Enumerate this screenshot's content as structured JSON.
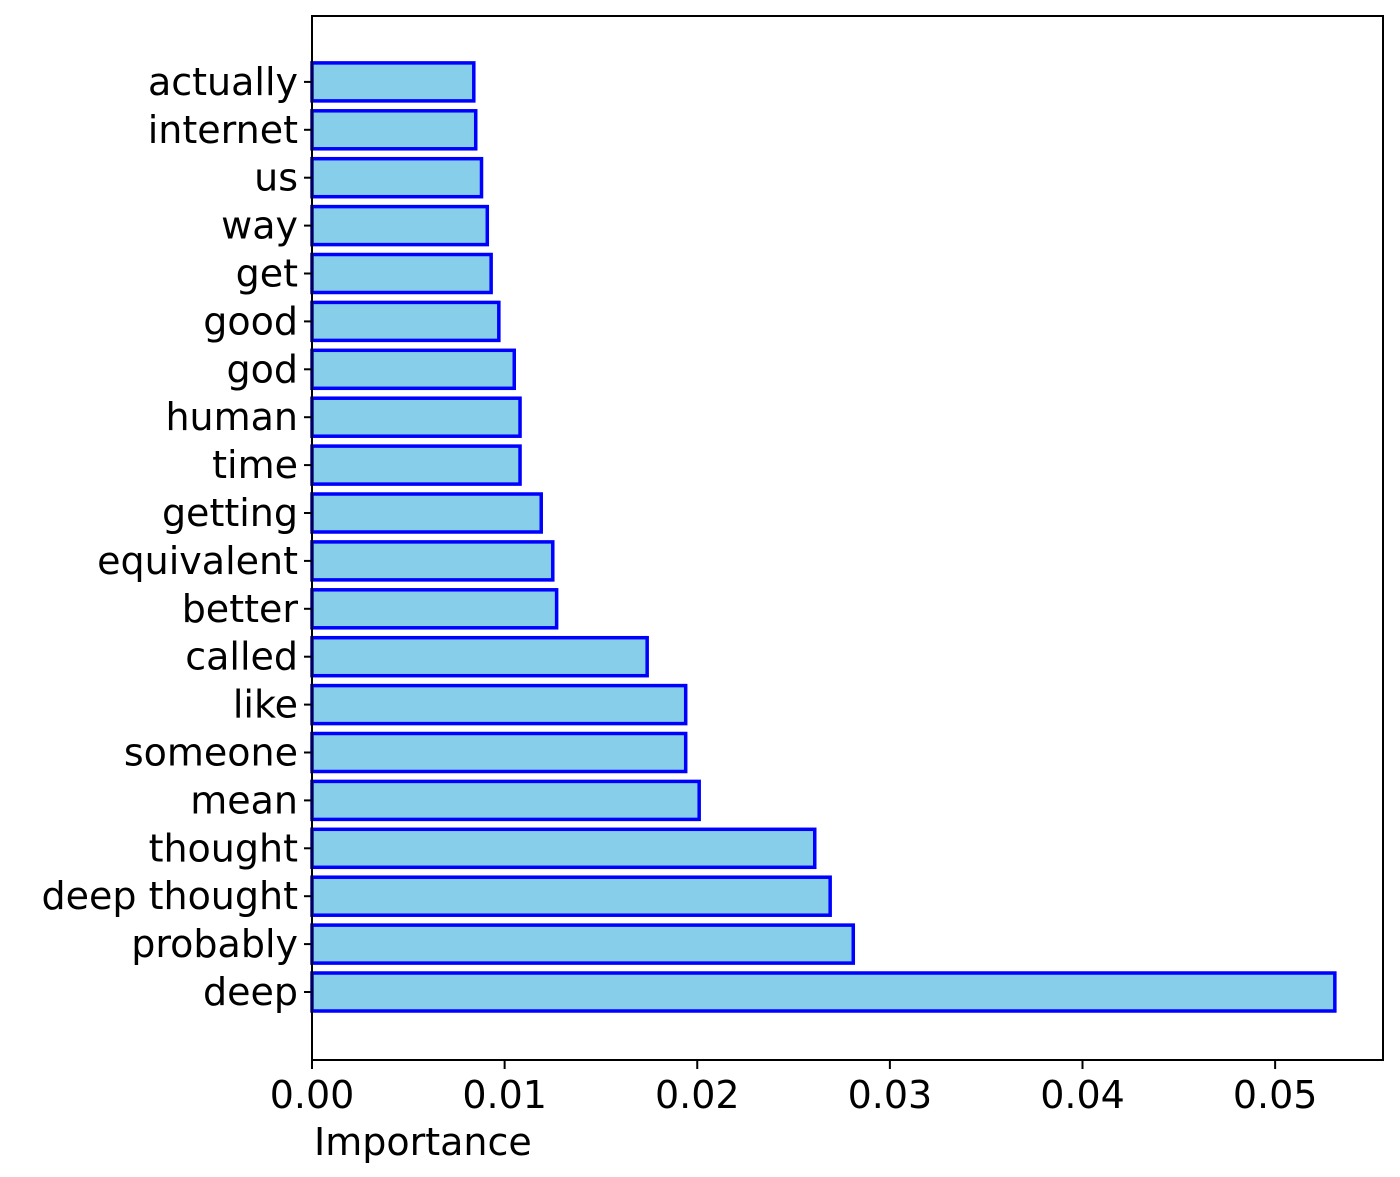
{
  "chart_data": {
    "type": "bar",
    "orientation": "horizontal",
    "title": "",
    "xlabel": "Importance",
    "ylabel": "",
    "xlim": [
      0,
      0.0556
    ],
    "xticks": [
      0.0,
      0.01,
      0.02,
      0.03,
      0.04,
      0.05
    ],
    "xtick_labels": [
      "0.00",
      "0.01",
      "0.02",
      "0.03",
      "0.04",
      "0.05"
    ],
    "grid": false,
    "legend": "none",
    "categories": [
      "deep",
      "probably",
      "deep thought",
      "thought",
      "mean",
      "someone",
      "like",
      "called",
      "better",
      "equivalent",
      "getting",
      "time",
      "human",
      "god",
      "good",
      "get",
      "way",
      "us",
      "internet",
      "actually"
    ],
    "values": [
      0.0531,
      0.0281,
      0.0269,
      0.0261,
      0.0201,
      0.0194,
      0.0194,
      0.0174,
      0.0127,
      0.0125,
      0.0119,
      0.0108,
      0.0108,
      0.0105,
      0.0097,
      0.0093,
      0.0091,
      0.0088,
      0.0085,
      0.0084
    ],
    "colors": {
      "bar_fill": "#87ceeb",
      "bar_edge": "#0000ff",
      "axis": "#000000"
    }
  }
}
